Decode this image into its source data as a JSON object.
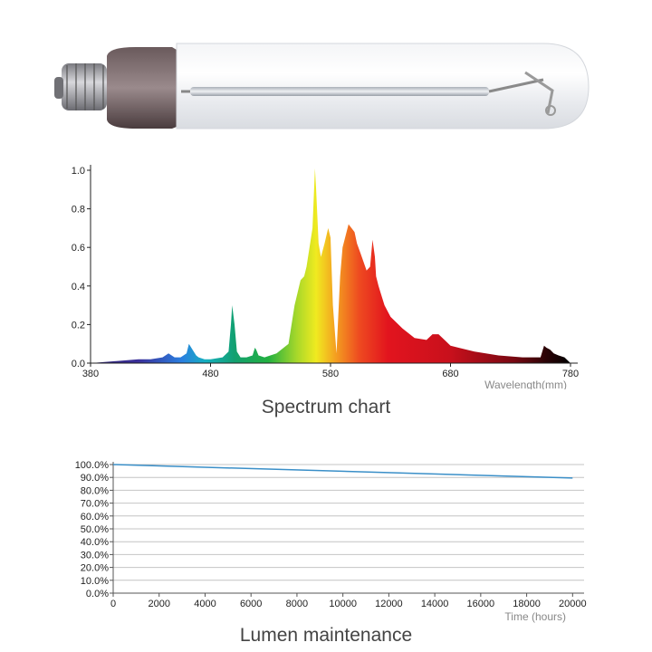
{
  "image": {
    "description": "High pressure sodium lamp bulb photo",
    "colors": {
      "glass": "#eef0f3",
      "base": "#9a9aa0",
      "neck": "#5a4a4a",
      "arc_tube": "#c8ccd2"
    }
  },
  "chart_data": [
    {
      "type": "area",
      "title": "Spectrum chart",
      "xlabel": "Wavelength(mm)",
      "ylabel": "",
      "xlim": [
        380,
        780
      ],
      "ylim": [
        0,
        1.0
      ],
      "x_ticks": [
        380,
        480,
        580,
        680,
        780
      ],
      "y_ticks": [
        "0.0",
        "0.2",
        "0.4",
        "0.6",
        "0.8",
        "1.0"
      ],
      "grid": false,
      "fill": "wavelength-gradient",
      "series": [
        {
          "x": [
            380,
            400,
            420,
            430,
            440,
            445,
            450,
            455,
            460,
            462,
            465,
            468,
            470,
            475,
            480,
            490,
            495,
            497,
            498,
            500,
            502,
            505,
            510,
            515,
            517,
            518,
            520,
            525,
            535,
            545,
            550,
            555,
            558,
            560,
            565,
            567,
            568,
            570,
            572,
            575,
            578,
            580,
            582,
            585,
            588,
            590,
            595,
            600,
            602,
            605,
            610,
            613,
            615,
            617,
            618,
            620,
            622,
            625,
            630,
            640,
            650,
            660,
            665,
            670,
            675,
            680,
            700,
            720,
            740,
            755,
            758,
            760,
            763,
            766,
            770,
            775,
            780
          ],
          "y": [
            0.0,
            0.01,
            0.02,
            0.02,
            0.03,
            0.05,
            0.03,
            0.03,
            0.05,
            0.1,
            0.07,
            0.04,
            0.03,
            0.02,
            0.02,
            0.03,
            0.06,
            0.2,
            0.3,
            0.2,
            0.06,
            0.03,
            0.03,
            0.04,
            0.08,
            0.07,
            0.04,
            0.03,
            0.05,
            0.1,
            0.3,
            0.43,
            0.45,
            0.5,
            0.7,
            1.01,
            0.9,
            0.62,
            0.55,
            0.62,
            0.7,
            0.65,
            0.3,
            0.05,
            0.45,
            0.6,
            0.72,
            0.68,
            0.62,
            0.57,
            0.48,
            0.5,
            0.64,
            0.55,
            0.45,
            0.4,
            0.36,
            0.3,
            0.24,
            0.18,
            0.13,
            0.12,
            0.15,
            0.15,
            0.12,
            0.09,
            0.06,
            0.04,
            0.03,
            0.03,
            0.09,
            0.08,
            0.07,
            0.05,
            0.04,
            0.03,
            0.0
          ]
        }
      ]
    },
    {
      "type": "line",
      "title": "Lumen maintenance",
      "xlabel": "Time (hours)",
      "ylabel": "",
      "xlim": [
        0,
        20500
      ],
      "ylim": [
        0,
        100
      ],
      "x_ticks": [
        0,
        2000,
        4000,
        6000,
        8000,
        10000,
        12000,
        14000,
        16000,
        18000,
        20000
      ],
      "y_ticks": [
        "0.0%",
        "10.0%",
        "20.0%",
        "30.0%",
        "40.0%",
        "50.0%",
        "60.0%",
        "70.0%",
        "80.0%",
        "90.0%",
        "100.0%"
      ],
      "grid": true,
      "series": [
        {
          "color": "#3a8fc8",
          "x": [
            0,
            20000
          ],
          "y": [
            100,
            89.5
          ]
        }
      ]
    }
  ]
}
